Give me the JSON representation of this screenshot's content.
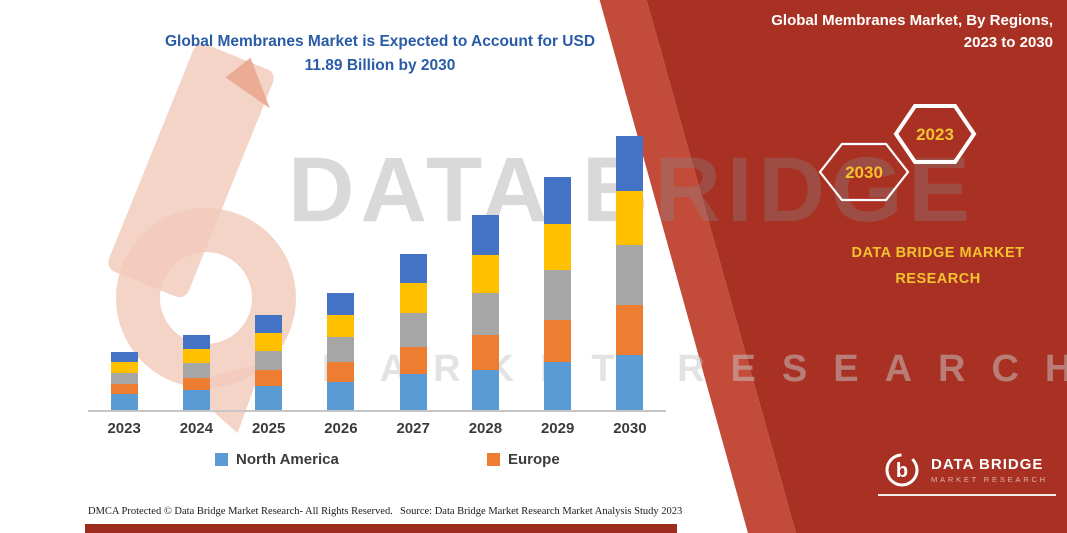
{
  "header": {
    "chart_title_line1": "Global Membranes Market is Expected to Account for USD",
    "chart_title_line2": "11.89 Billion by 2030",
    "title_color": "#2A5BA7"
  },
  "right_panel": {
    "bg_color": "#A93123",
    "accent_color": "#F2C230",
    "title_line1": "Global Membranes Market, By Regions,",
    "title_line2": "2023 to 2030",
    "hexagon_back_year": "2030",
    "hexagon_front_year": "2023",
    "brand_line1": "DATA BRIDGE MARKET",
    "brand_line2": "RESEARCH",
    "logo_name": "DATA BRIDGE",
    "logo_tagline": "MARKET RESEARCH",
    "logo_glyph": "b"
  },
  "watermark": {
    "main": "DATA BRIDGE",
    "sub": "MARKET RESEARCH"
  },
  "legend": {
    "items": [
      {
        "label": "North America",
        "color": "#5B9BD5"
      },
      {
        "label": "Europe",
        "color": "#ED7D31"
      }
    ]
  },
  "footer": {
    "dmca": "DMCA Protected © Data Bridge Market Research-  All Rights Reserved.",
    "source": "Source: Data Bridge Market Research  Market Analysis Study 2023"
  },
  "chart_data": {
    "type": "bar",
    "stacked": true,
    "title": "Global Membranes Market is Expected to Account for USD 11.89 Billion by 2030",
    "unit": "USD billion",
    "categories": [
      "2023",
      "2024",
      "2025",
      "2026",
      "2027",
      "2028",
      "2029",
      "2030"
    ],
    "ylim": [
      0,
      12
    ],
    "grid": false,
    "legend_position": "bottom",
    "legend_visible_series": [
      "North America",
      "Europe"
    ],
    "series": [
      {
        "name": "North America",
        "color": "#5B9BD5",
        "values": [
          0.69,
          0.87,
          1.04,
          1.21,
          1.56,
          1.73,
          2.08,
          2.39
        ]
      },
      {
        "name": "series-3-unlabeled",
        "color": "#ED7D31",
        "legend_label": "Europe",
        "values": [
          0.43,
          0.52,
          0.69,
          0.87,
          1.17,
          1.52,
          1.82,
          2.17
        ]
      },
      {
        "name": "series-gray-unlabeled",
        "color": "#A6A6A6",
        "values": [
          0.48,
          0.65,
          0.82,
          1.08,
          1.47,
          1.82,
          2.17,
          2.6
        ]
      },
      {
        "name": "series-yellow-unlabeled",
        "color": "#FFC000",
        "values": [
          0.48,
          0.61,
          0.78,
          0.95,
          1.3,
          1.65,
          1.99,
          2.34
        ]
      },
      {
        "name": "series-blue-unlabeled",
        "color": "#4472C4",
        "values": [
          0.43,
          0.61,
          0.78,
          0.95,
          1.26,
          1.73,
          2.04,
          2.39
        ]
      }
    ],
    "totals": [
      2.51,
      3.26,
      4.11,
      5.06,
      6.76,
      8.45,
      10.1,
      11.89
    ]
  }
}
